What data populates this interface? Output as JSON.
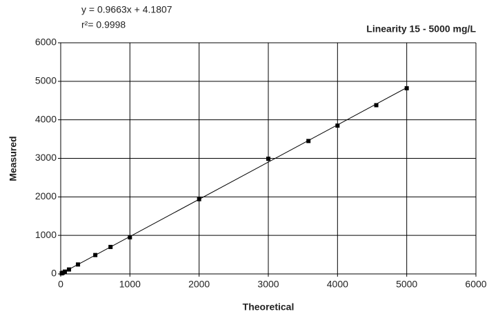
{
  "chart_data": {
    "type": "scatter",
    "title": "Linearity 15 - 5000 mg/L",
    "x_label": "Theoretical",
    "y_label": "Measured",
    "x": [
      15,
      30,
      60,
      120,
      250,
      500,
      720,
      1000,
      2000,
      3000,
      3580,
      4000,
      4560,
      5000
    ],
    "values": [
      15,
      30,
      60,
      115,
      245,
      490,
      700,
      950,
      1940,
      2990,
      3450,
      3850,
      4380,
      4820
    ],
    "color": "#000000",
    "trendline": {
      "equation": "y = 0.9663x + 4.1807",
      "r2_text": "r²= 0.9998",
      "slope": 0.9663,
      "intercept": 4.1807
    },
    "xlim": [
      0,
      6000
    ],
    "xticks": [
      0,
      1000,
      2000,
      3000,
      4000,
      5000,
      6000
    ],
    "ylim": [
      0,
      6000
    ],
    "yticks": [
      0,
      1000,
      2000,
      3000,
      4000,
      5000,
      6000
    ],
    "grid": true
  }
}
